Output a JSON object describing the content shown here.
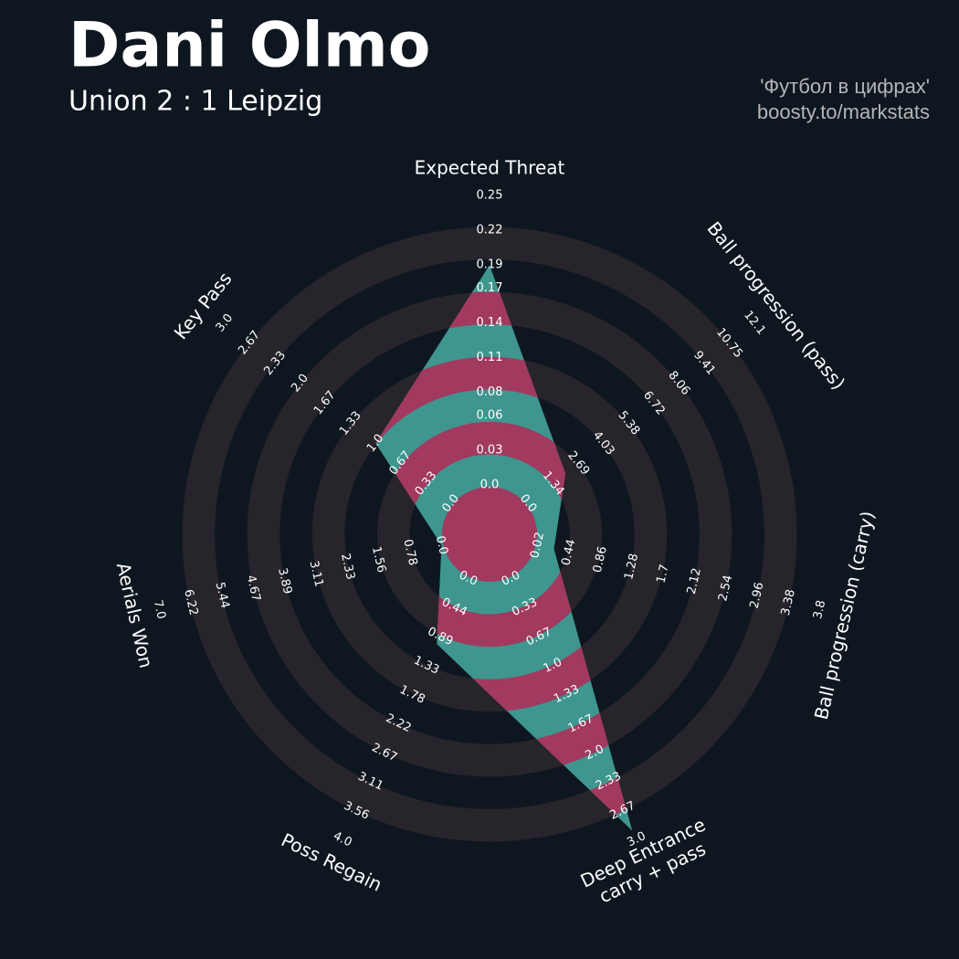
{
  "chart_data": {
    "type": "radar",
    "title": "Dani Olmo",
    "subtitle": "Union 2 : 1 Leipzig",
    "credits": [
      "'Футбол в цифрах'",
      "boosty.to/markstats"
    ],
    "params": [
      "Expected Threat",
      "Ball progression (pass)",
      "Ball progression (carry)",
      "Deep Entrance\ncarry + pass",
      "Poss Regain",
      "Aerials Won",
      "Key Pass"
    ],
    "lims": [
      [
        0,
        0.25
      ],
      [
        0,
        12.1
      ],
      [
        0.02,
        3.8
      ],
      [
        0,
        3
      ],
      [
        0,
        4
      ],
      [
        0,
        7
      ],
      [
        0,
        3
      ]
    ],
    "ticks": [
      [
        {
          "value": 0,
          "label": "0.0"
        },
        0.03,
        0.06,
        0.08,
        0.11,
        0.14,
        0.17,
        0.19,
        0.22,
        0.25
      ],
      [
        {
          "value": 0,
          "label": "0.0"
        },
        1.34,
        2.69,
        4.03,
        5.38,
        6.72,
        8.06,
        9.41,
        10.75,
        12.1
      ],
      [
        0.02,
        0.44,
        0.86,
        1.28,
        1.7,
        2.12,
        2.54,
        2.96,
        3.38,
        3.8
      ],
      [
        {
          "value": 0,
          "label": "0.0"
        },
        0.33,
        0.67,
        {
          "value": 1,
          "label": "1.0"
        },
        1.33,
        1.67,
        {
          "value": 2,
          "label": "2.0"
        },
        2.33,
        2.67,
        {
          "value": 3,
          "label": "3.0"
        }
      ],
      [
        {
          "value": 0,
          "label": "0.0"
        },
        0.44,
        0.89,
        1.33,
        1.78,
        2.22,
        2.67,
        3.11,
        3.56,
        {
          "value": 4,
          "label": "4.0"
        }
      ],
      [
        {
          "value": 0,
          "label": "0.0"
        },
        0.78,
        1.56,
        2.33,
        3.11,
        3.89,
        4.67,
        5.44,
        6.22,
        {
          "value": 7,
          "label": "7.0"
        }
      ],
      [
        {
          "value": 0,
          "label": "0.0"
        },
        0.33,
        0.67,
        {
          "value": 1,
          "label": "1.0"
        },
        1.33,
        1.67,
        {
          "value": 2,
          "label": "2.0"
        },
        2.33,
        2.67,
        {
          "value": 3,
          "label": "3.0"
        }
      ]
    ],
    "values": [
      0.19,
      2.0,
      0.24,
      2.9,
      1.0,
      0,
      1.0
    ],
    "ring_color": "#28242b",
    "colors": [
      "#3e968f",
      "#a2395f"
    ]
  }
}
